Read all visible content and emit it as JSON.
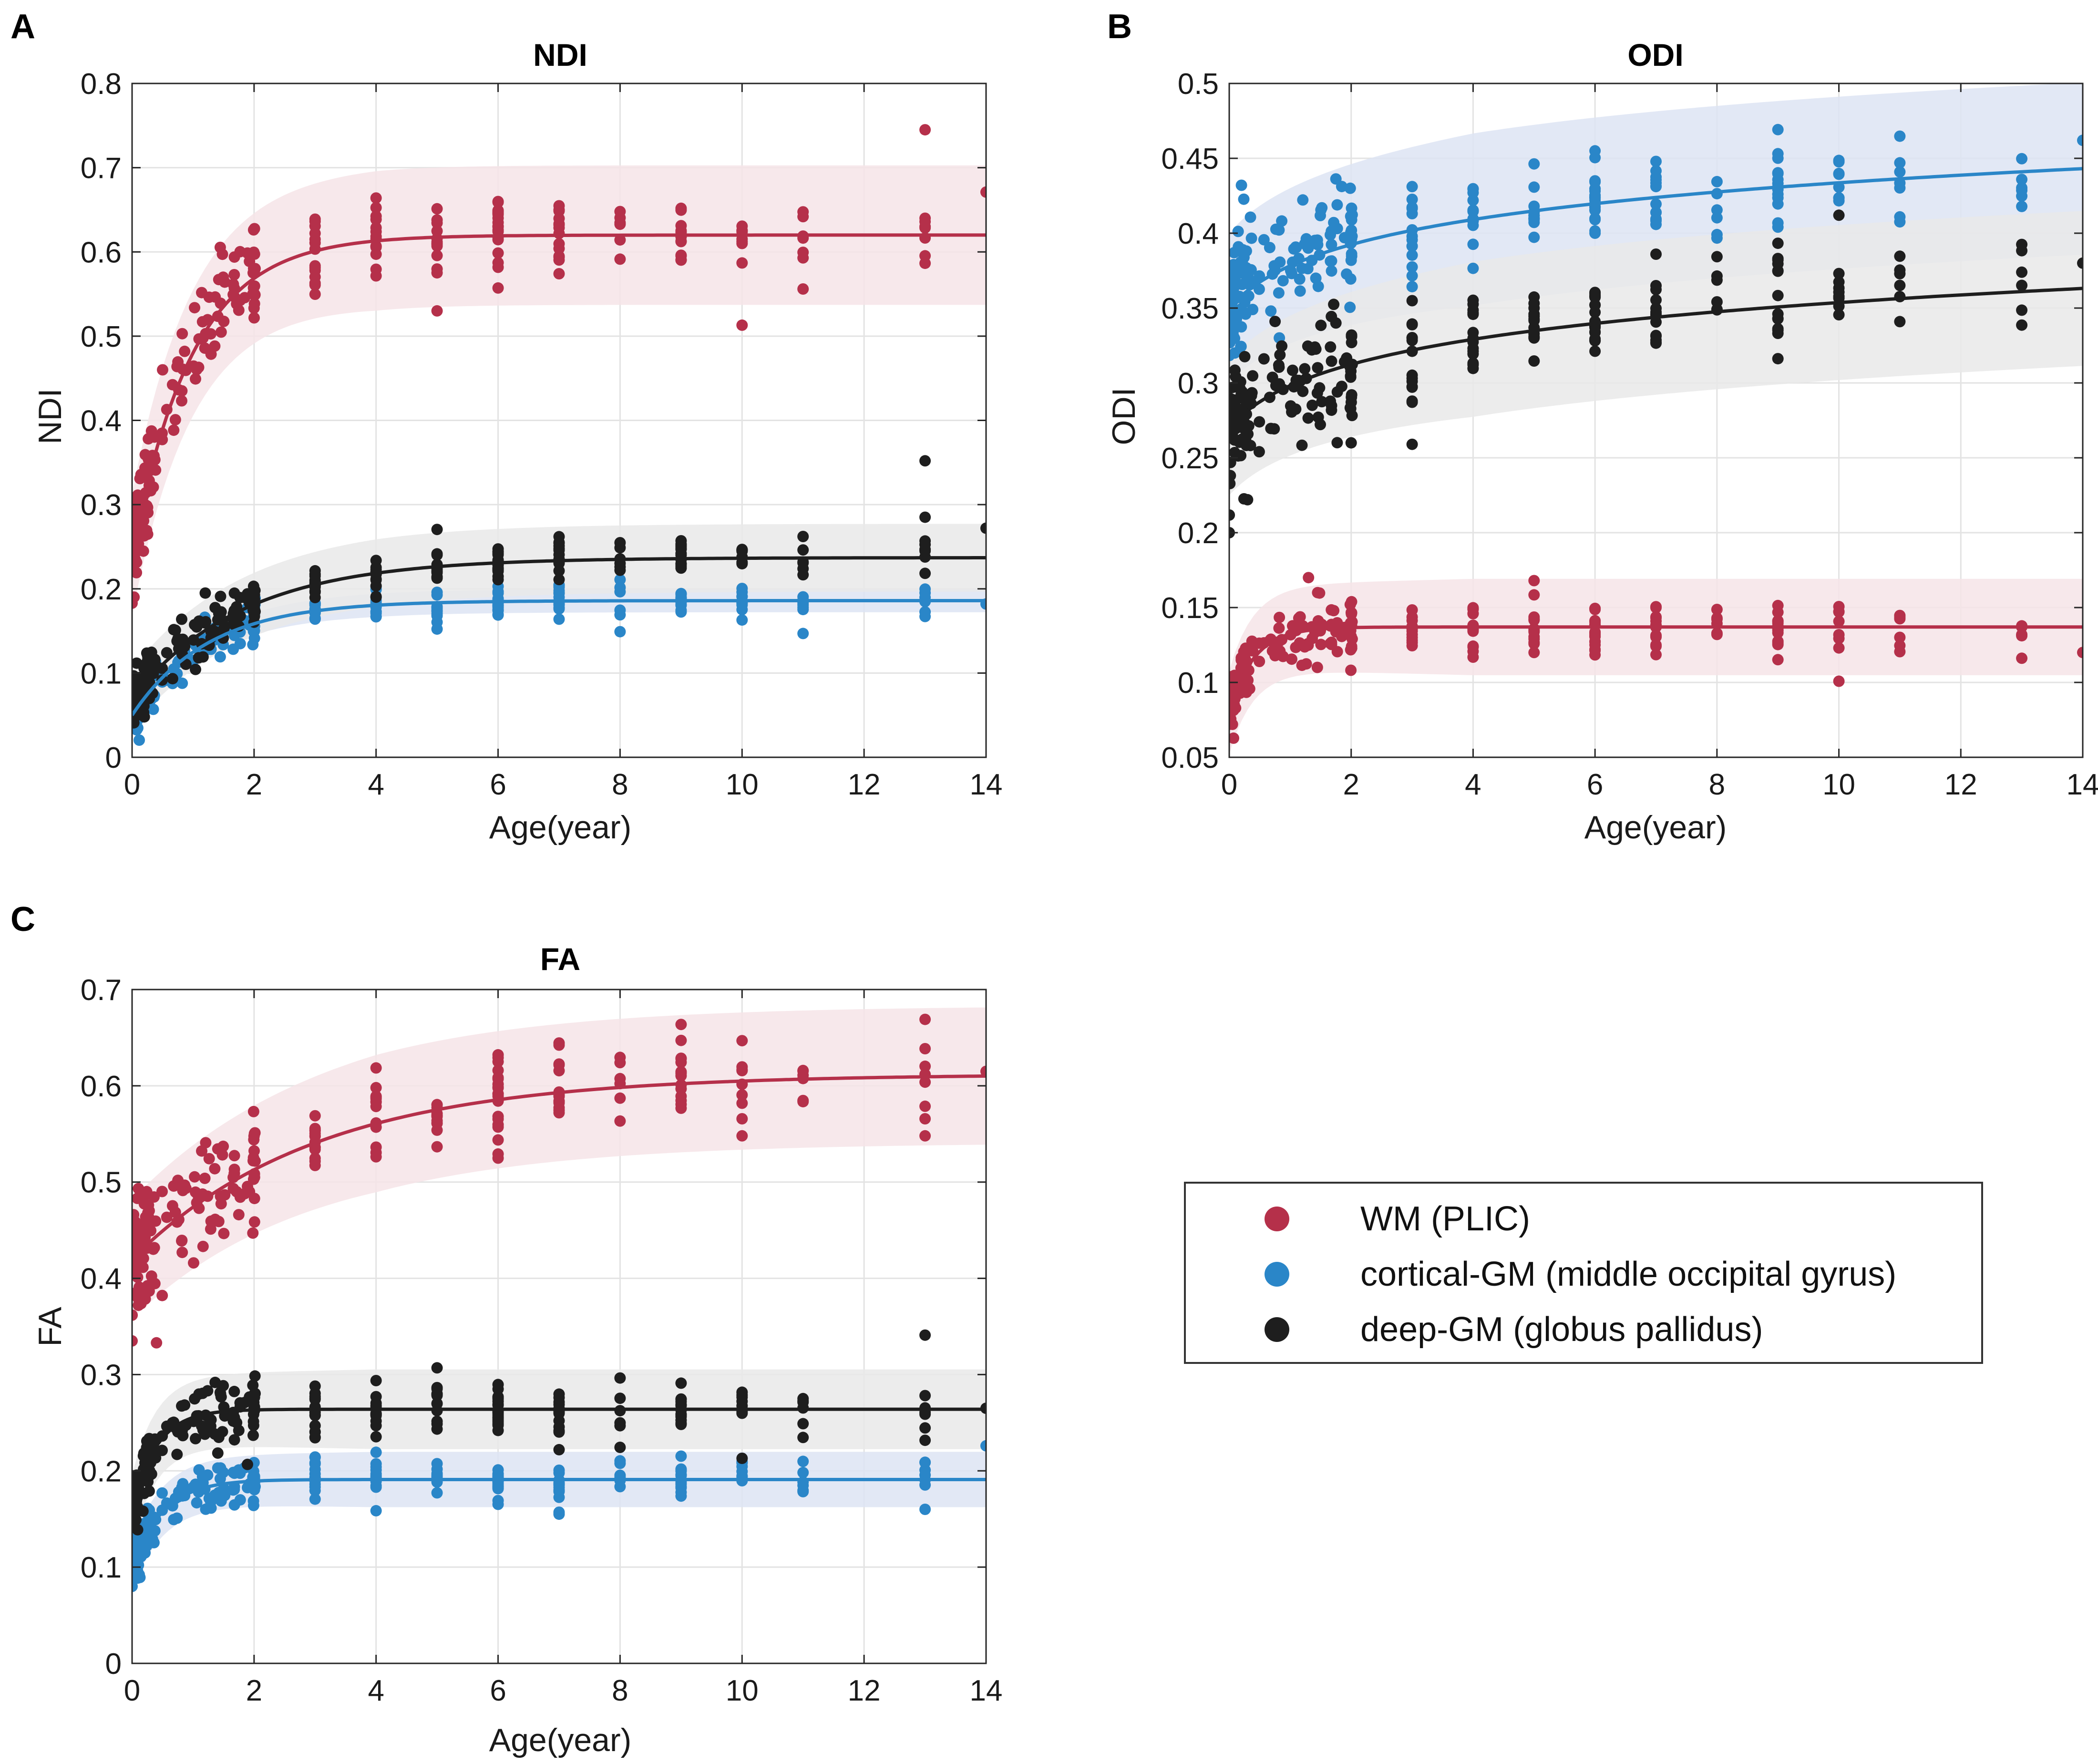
{
  "figure": {
    "legend": {
      "entries": [
        {
          "label": "WM (PLIC)",
          "series": "wm"
        },
        {
          "label": "cortical-GM (middle occipital gyrus)",
          "series": "cgm"
        },
        {
          "label": "deep-GM (globus pallidus)",
          "series": "dgm"
        }
      ]
    },
    "colors": {
      "wm": "#b5304a",
      "cgm": "#2a86c8",
      "dgm": "#1e1e1e",
      "wm_band": "#f6e4e7",
      "cgm_band": "#dde4f3",
      "dgm_band": "#e9e9e9",
      "grid": "#e3e3e3",
      "axis": "#262626"
    }
  },
  "chart_data": [
    {
      "id": "ndi",
      "panel": "A",
      "type": "scatter",
      "title": "NDI",
      "xlabel": "Age(year)",
      "ylabel": "NDI",
      "xlim": [
        0,
        14
      ],
      "ylim": [
        0,
        0.8
      ],
      "xticks": [
        0,
        2,
        4,
        6,
        8,
        10,
        12,
        14
      ],
      "yticks": [
        0,
        0.1,
        0.2,
        0.3,
        0.4,
        0.5,
        0.6,
        0.7,
        0.8
      ],
      "yticklabels": [
        "0",
        "0.1",
        "0.2",
        "0.3",
        "0.4",
        "0.5",
        "0.6",
        "0.7",
        "0.8"
      ],
      "grid": true,
      "series": [
        {
          "name": "WM (PLIC)",
          "key": "wm",
          "fit": {
            "y0": 0.24,
            "a": 0.62,
            "k": 1.0
          },
          "band_halfwidth": 0.072,
          "scatter_sd": 0.03,
          "points": [
            [
              13,
              0.745
            ],
            [
              10,
              0.513
            ],
            [
              11,
              0.556
            ],
            [
              14,
              0.671
            ],
            [
              0.5,
              0.46
            ],
            [
              0.0,
              0.183
            ],
            [
              5,
              0.53
            ],
            [
              13,
              0.64
            ]
          ]
        },
        {
          "name": "cortical-GM (middle occipital gyrus)",
          "key": "cgm",
          "fit": {
            "y0": 0.05,
            "a": 0.186,
            "k": 0.8
          },
          "band_halfwidth": 0.012,
          "scatter_sd": 0.012,
          "points": [
            [
              14,
              0.182
            ],
            [
              11,
              0.147
            ],
            [
              10,
              0.163
            ],
            [
              13,
              0.185
            ]
          ]
        },
        {
          "name": "deep-GM (globus pallidus)",
          "key": "dgm",
          "fit": {
            "y0": 0.07,
            "a": 0.237,
            "k": 0.55
          },
          "band_halfwidth": 0.035,
          "scatter_sd": 0.015,
          "points": [
            [
              13,
              0.352
            ],
            [
              13,
              0.285
            ],
            [
              14,
              0.272
            ],
            [
              1.2,
              0.195
            ]
          ]
        }
      ]
    },
    {
      "id": "odi",
      "panel": "B",
      "type": "scatter",
      "title": "ODI",
      "xlabel": "Age(year)",
      "ylabel": "ODI",
      "xlim": [
        0,
        14
      ],
      "ylim": [
        0.05,
        0.5
      ],
      "xticks": [
        0,
        2,
        4,
        6,
        8,
        10,
        12,
        14
      ],
      "yticks": [
        0.05,
        0.1,
        0.15,
        0.2,
        0.25,
        0.3,
        0.35,
        0.4,
        0.45,
        0.5
      ],
      "yticklabels": [
        "0.05",
        "0.1",
        "0.15",
        "0.2",
        "0.25",
        "0.3",
        "0.35",
        "0.4",
        "0.45",
        "0.5"
      ],
      "grid": true,
      "series": [
        {
          "name": "WM (PLIC)",
          "key": "wm",
          "fit": {
            "y0": 0.08,
            "a": 0.137,
            "k": 2.5
          },
          "band_halfwidth": 0.028,
          "scatter_sd": 0.01,
          "points": [
            [
              14,
              0.12
            ],
            [
              0.0,
              0.072
            ],
            [
              1.3,
              0.17
            ],
            [
              5,
              0.168
            ]
          ]
        },
        {
          "name": "cortical-GM (middle occipital gyrus)",
          "key": "cgm",
          "fit": {
            "log": true,
            "y1": 0.372,
            "s": 0.068,
            "y0": 0.35
          },
          "band_halfwidth": 0.05,
          "scatter_sd": 0.02,
          "points": [
            [
              14,
              0.462
            ],
            [
              6,
              0.455
            ],
            [
              0.2,
              0.432
            ],
            [
              11,
              0.447
            ]
          ]
        },
        {
          "name": "deep-GM (globus pallidus)",
          "key": "dgm",
          "fit": {
            "log": true,
            "y1": 0.3,
            "s": 0.068,
            "y0": 0.27
          },
          "band_halfwidth": 0.045,
          "scatter_sd": 0.02,
          "points": [
            [
              0.0,
              0.2
            ],
            [
              0.3,
              0.222
            ],
            [
              10,
              0.412
            ],
            [
              3,
              0.259
            ],
            [
              14,
              0.38
            ]
          ]
        }
      ]
    },
    {
      "id": "fa",
      "panel": "C",
      "type": "scatter",
      "title": "FA",
      "xlabel": "Age(year)",
      "ylabel": "FA",
      "xlim": [
        0,
        14
      ],
      "ylim": [
        0,
        0.7
      ],
      "xticks": [
        0,
        2,
        4,
        6,
        8,
        10,
        12,
        14
      ],
      "yticks": [
        0,
        0.1,
        0.2,
        0.3,
        0.4,
        0.5,
        0.6,
        0.7
      ],
      "yticklabels": [
        "0",
        "0.1",
        "0.2",
        "0.3",
        "0.4",
        "0.5",
        "0.6",
        "0.7"
      ],
      "grid": true,
      "series": [
        {
          "name": "WM (PLIC)",
          "key": "wm",
          "fit": {
            "y0": 0.42,
            "a": 0.612,
            "k": 0.33
          },
          "band_halfwidth": 0.062,
          "scatter_sd": 0.03,
          "points": [
            [
              13,
              0.669
            ],
            [
              13,
              0.548
            ],
            [
              0.0,
              0.335
            ],
            [
              0.4,
              0.333
            ],
            [
              14,
              0.615
            ],
            [
              10,
              0.548
            ]
          ]
        },
        {
          "name": "cortical-GM (middle occipital gyrus)",
          "key": "cgm",
          "fit": {
            "y0": 0.1,
            "a": 0.191,
            "k": 2.0
          },
          "band_halfwidth": 0.025,
          "scatter_sd": 0.012,
          "points": [
            [
              14,
              0.226
            ],
            [
              13,
              0.16
            ],
            [
              7,
              0.155
            ],
            [
              0.0,
              0.08
            ]
          ]
        },
        {
          "name": "deep-GM (globus pallidus)",
          "key": "dgm",
          "fit": {
            "y0": 0.16,
            "a": 0.264,
            "k": 2.5
          },
          "band_halfwidth": 0.036,
          "scatter_sd": 0.015,
          "points": [
            [
              13,
              0.341
            ],
            [
              14,
              0.265
            ],
            [
              5,
              0.307
            ],
            [
              10,
              0.213
            ],
            [
              7,
              0.222
            ]
          ]
        }
      ]
    }
  ]
}
